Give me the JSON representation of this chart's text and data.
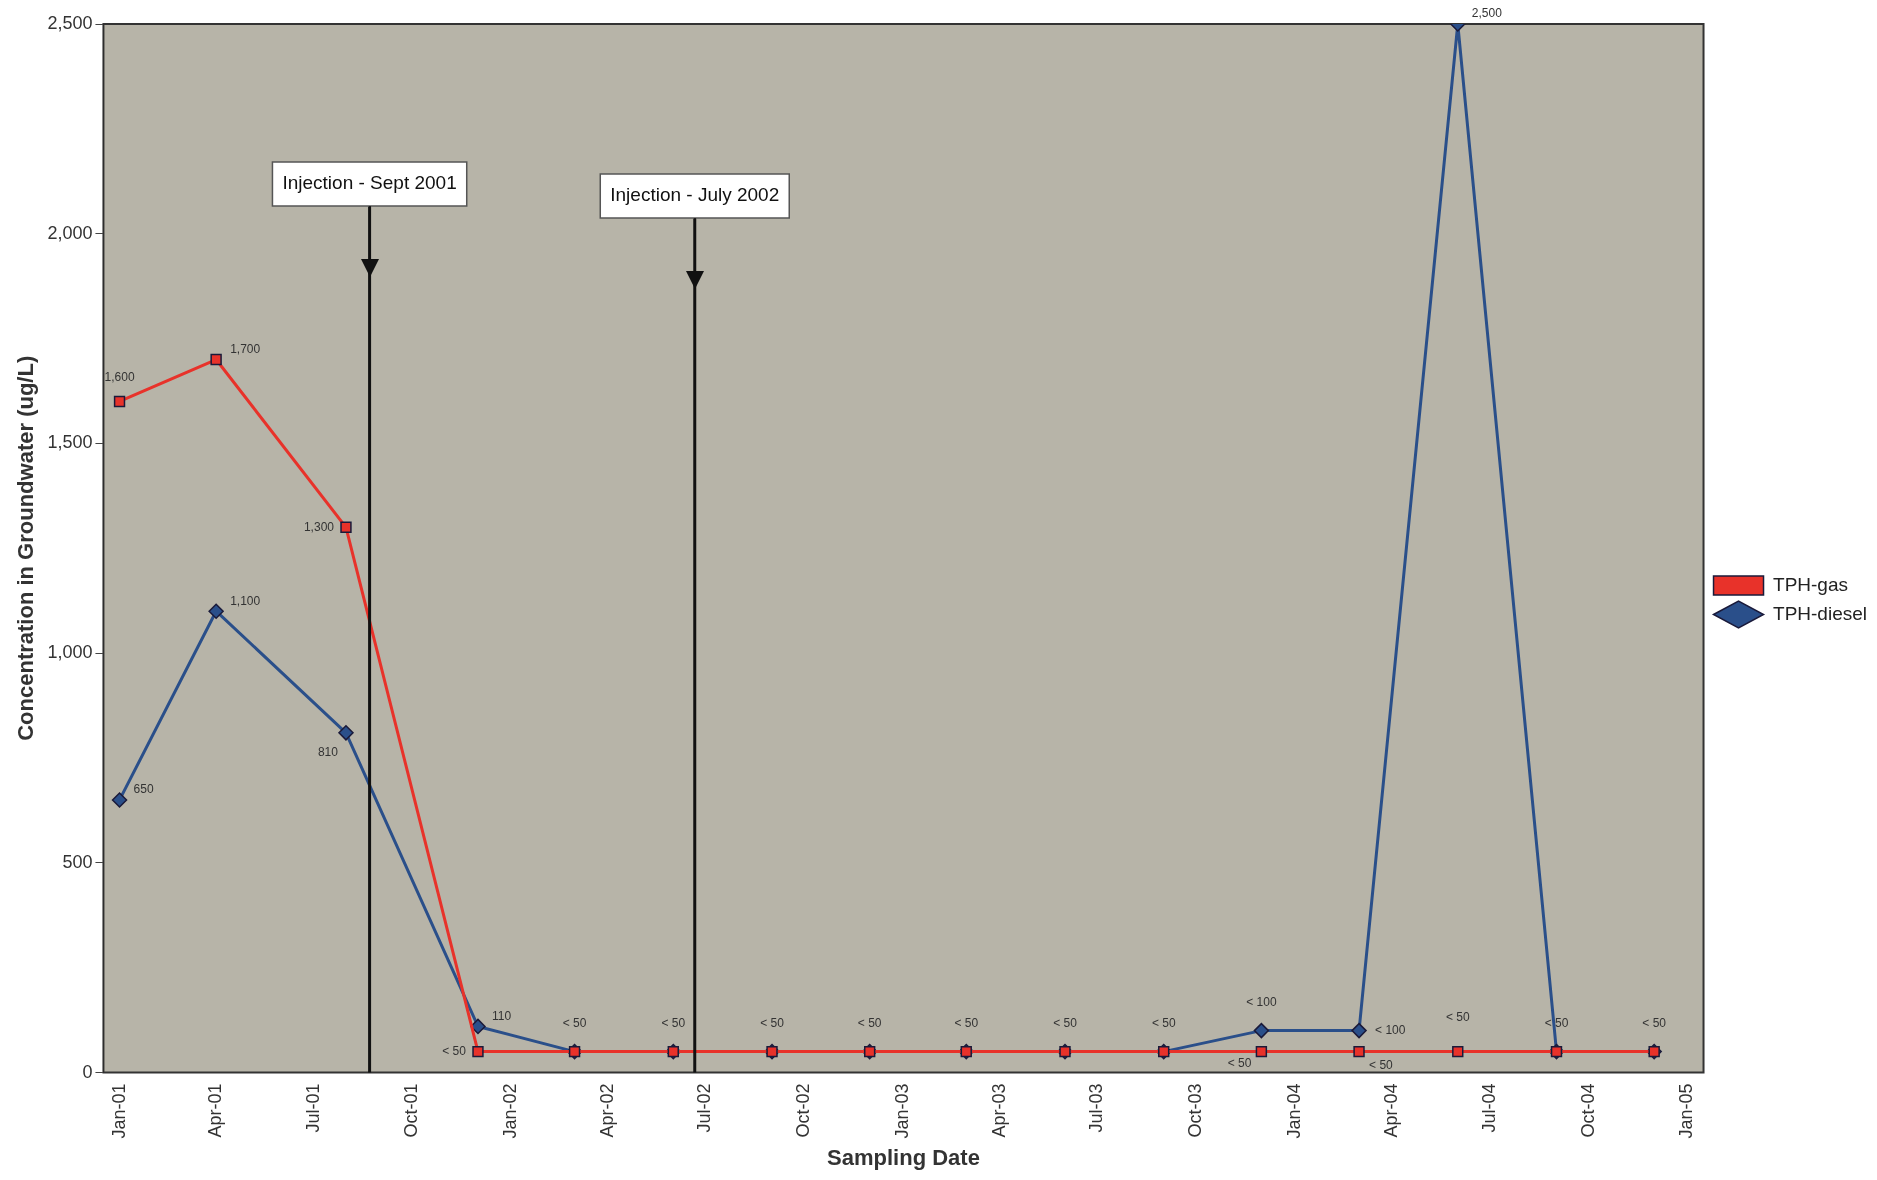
{
  "chart_data": {
    "type": "line",
    "xlabel": "Sampling Date",
    "ylabel": "Concentration in Groundwater (ug/L)",
    "x": [
      "2001-01-01",
      "2001-04-01",
      "2001-07-31",
      "2001-12-01",
      "2002-03-01",
      "2002-06-01",
      "2002-09-01",
      "2002-12-01",
      "2003-03-01",
      "2003-06-01",
      "2003-09-01",
      "2003-12-01",
      "2004-03-01",
      "2004-06-01",
      "2004-09-01",
      "2004-12-01"
    ],
    "series": [
      {
        "name": "TPH-gas",
        "color": "#e8322a",
        "marker": "square",
        "values": [
          1600,
          1700,
          1300,
          50,
          50,
          50,
          50,
          50,
          50,
          50,
          50,
          50,
          50,
          50,
          50,
          50
        ],
        "value_labels": [
          "1,600",
          "1,700",
          "1,300",
          "< 50",
          null,
          null,
          null,
          null,
          null,
          null,
          null,
          "< 50",
          "< 50",
          "< 50",
          null,
          null
        ]
      },
      {
        "name": "TPH-diesel",
        "color": "#2a4f8a",
        "marker": "diamond",
        "values": [
          650,
          1100,
          810,
          110,
          50,
          50,
          50,
          50,
          50,
          50,
          50,
          100,
          100,
          2500,
          50,
          50
        ],
        "value_labels": [
          "650",
          "1,100",
          "810",
          "110",
          "< 50",
          "< 50",
          "< 50",
          "< 50",
          "< 50",
          "< 50",
          "< 50",
          "< 100",
          "< 100",
          "2,500",
          "< 50",
          "< 50"
        ]
      }
    ],
    "xlim": [
      "2000-12-17",
      "2005-01-16"
    ],
    "xticks": [
      {
        "value": "2001-01-01",
        "label": "Jan-01"
      },
      {
        "value": "2001-04-01",
        "label": "Apr-01"
      },
      {
        "value": "2001-07-01",
        "label": "Jul-01"
      },
      {
        "value": "2001-10-01",
        "label": "Oct-01"
      },
      {
        "value": "2002-01-01",
        "label": "Jan-02"
      },
      {
        "value": "2002-04-01",
        "label": "Apr-02"
      },
      {
        "value": "2002-07-01",
        "label": "Jul-02"
      },
      {
        "value": "2002-10-01",
        "label": "Oct-02"
      },
      {
        "value": "2003-01-01",
        "label": "Jan-03"
      },
      {
        "value": "2003-04-01",
        "label": "Apr-03"
      },
      {
        "value": "2003-07-01",
        "label": "Jul-03"
      },
      {
        "value": "2003-10-01",
        "label": "Oct-03"
      },
      {
        "value": "2004-01-01",
        "label": "Jan-04"
      },
      {
        "value": "2004-04-01",
        "label": "Apr-04"
      },
      {
        "value": "2004-07-01",
        "label": "Jul-04"
      },
      {
        "value": "2004-10-01",
        "label": "Oct-04"
      },
      {
        "value": "2005-01-01",
        "label": "Jan-05"
      }
    ],
    "ylim": [
      0,
      2500
    ],
    "yticks": [
      0,
      500,
      {
        "value": 1000,
        "label": "1,000"
      },
      {
        "value": 1500,
        "label": "1,500"
      },
      {
        "value": 2000,
        "label": "2,000"
      },
      {
        "value": 2500,
        "label": "2,500"
      }
    ],
    "ref_lines": [
      {
        "axis": "x",
        "value": "2001-08-22",
        "label": "Injection - Sept 2001",
        "color": "#111111"
      },
      {
        "axis": "x",
        "value": "2002-06-21",
        "label": "Injection - July 2002",
        "color": "#111111"
      }
    ],
    "grid": false,
    "legend": "right",
    "line_style": "solid"
  }
}
